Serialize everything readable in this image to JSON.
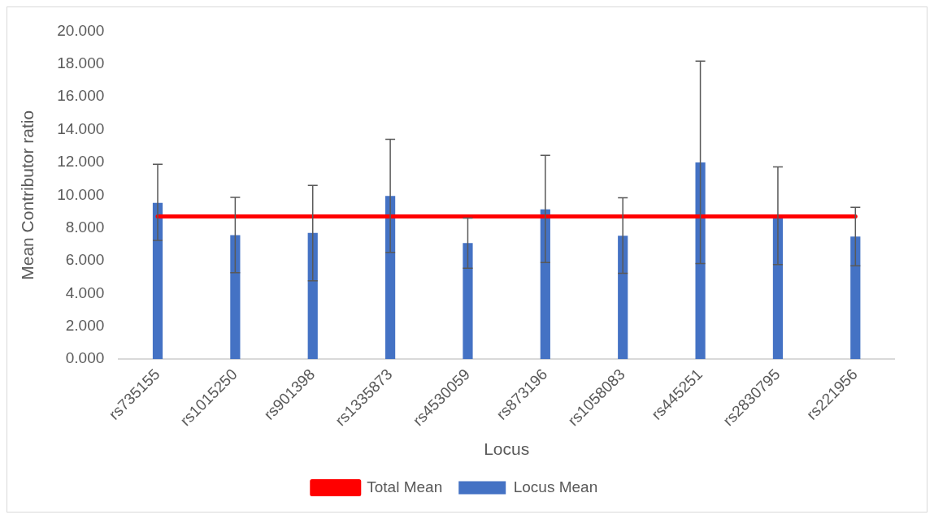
{
  "chart_data": {
    "type": "bar",
    "xlabel": "Locus",
    "ylabel": "Mean Contributor ratio",
    "categories": [
      "rs735155",
      "rs1015250",
      "rs901398",
      "rs1335873",
      "rs4530059",
      "rs873196",
      "rs1058083",
      "rs445251",
      "rs2830795",
      "rs221956"
    ],
    "series": [
      {
        "name": "Locus Mean",
        "color": "#4472c4",
        "values": [
          9.53,
          7.56,
          7.7,
          9.95,
          7.08,
          9.14,
          7.52,
          12.0,
          8.65,
          7.48
        ],
        "errors": [
          [
            7.24,
            11.88
          ],
          [
            5.27,
            9.86
          ],
          [
            4.78,
            10.6
          ],
          [
            6.51,
            13.41
          ],
          [
            5.55,
            8.6
          ],
          [
            5.89,
            12.43
          ],
          [
            5.24,
            9.84
          ],
          [
            5.83,
            18.18
          ],
          [
            5.77,
            11.72
          ],
          [
            5.69,
            9.26
          ]
        ]
      },
      {
        "name": "Total Mean",
        "type": "line",
        "color": "#ff0000",
        "marker": "none",
        "line_style": "solid",
        "values": [
          8.7,
          8.7,
          8.7,
          8.7,
          8.7,
          8.7,
          8.7,
          8.7,
          8.7,
          8.7
        ]
      }
    ],
    "ylim": [
      0,
      20
    ],
    "yticks": [
      {
        "value": 0,
        "label": "0.000"
      },
      {
        "value": 2,
        "label": "2.000"
      },
      {
        "value": 4,
        "label": "4.000"
      },
      {
        "value": 6,
        "label": "6.000"
      },
      {
        "value": 8,
        "label": "8.000"
      },
      {
        "value": 10,
        "label": "10.000"
      },
      {
        "value": 12,
        "label": "12.000"
      },
      {
        "value": 14,
        "label": "14.000"
      },
      {
        "value": 16,
        "label": "16.000"
      },
      {
        "value": 18,
        "label": "18.000"
      },
      {
        "value": 20,
        "label": "20.000"
      }
    ],
    "grid": false,
    "legend": "bottom"
  }
}
